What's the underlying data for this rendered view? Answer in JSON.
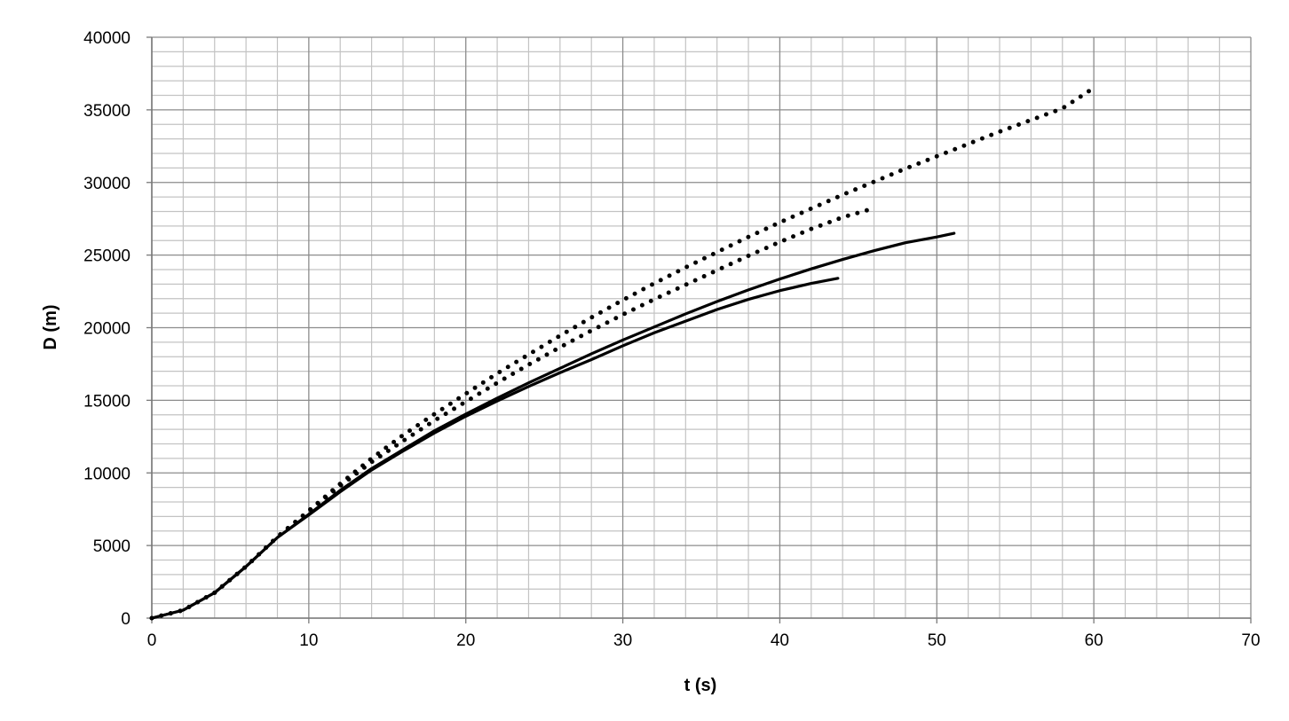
{
  "chart_data": {
    "type": "line",
    "title": "",
    "xlabel": "t (s)",
    "ylabel": "D (m)",
    "xlim": [
      0,
      70
    ],
    "ylim": [
      0,
      40000
    ],
    "x_major_ticks": [
      "0",
      "10",
      "20",
      "30",
      "40",
      "50",
      "60",
      "70"
    ],
    "y_major_ticks": [
      "0",
      "5000",
      "10000",
      "15000",
      "20000",
      "25000",
      "30000",
      "35000",
      "40000"
    ],
    "x_minor_step": 2,
    "y_minor_step": 1000,
    "grid": true,
    "legend": "none",
    "series": [
      {
        "style": "dotted",
        "color": "#000000",
        "points": [
          [
            0,
            0
          ],
          [
            2,
            550
          ],
          [
            4,
            1750
          ],
          [
            6,
            3550
          ],
          [
            8,
            5600
          ],
          [
            10,
            7400
          ],
          [
            12,
            9250
          ],
          [
            14,
            11000
          ],
          [
            16,
            12600
          ],
          [
            18,
            14050
          ],
          [
            20,
            15450
          ],
          [
            22,
            16850
          ],
          [
            24,
            18150
          ],
          [
            26,
            19450
          ],
          [
            28,
            20700
          ],
          [
            30,
            21900
          ],
          [
            32,
            23050
          ],
          [
            34,
            24150
          ],
          [
            36,
            25200
          ],
          [
            38,
            26250
          ],
          [
            40,
            27250
          ],
          [
            42,
            28200
          ],
          [
            44,
            29150
          ],
          [
            46,
            30050
          ],
          [
            48,
            30950
          ],
          [
            50,
            31800
          ],
          [
            52,
            32650
          ],
          [
            54,
            33500
          ],
          [
            56,
            34300
          ],
          [
            58,
            35100
          ],
          [
            59.7,
            36300
          ]
        ]
      },
      {
        "style": "dotted",
        "color": "#000000",
        "points": [
          [
            0,
            0
          ],
          [
            2,
            550
          ],
          [
            4,
            1750
          ],
          [
            6,
            3550
          ],
          [
            8,
            5600
          ],
          [
            10,
            7350
          ],
          [
            12,
            9100
          ],
          [
            14,
            10750
          ],
          [
            16,
            12200
          ],
          [
            18,
            13600
          ],
          [
            20,
            14900
          ],
          [
            22,
            16200
          ],
          [
            24,
            17450
          ],
          [
            26,
            18650
          ],
          [
            28,
            19800
          ],
          [
            30,
            20900
          ],
          [
            32,
            21950
          ],
          [
            34,
            22950
          ],
          [
            36,
            23950
          ],
          [
            38,
            24950
          ],
          [
            40,
            25900
          ],
          [
            42,
            26800
          ],
          [
            44,
            27600
          ],
          [
            45.6,
            28100
          ]
        ]
      },
      {
        "style": "solid",
        "color": "#000000",
        "points": [
          [
            0,
            0
          ],
          [
            2,
            550
          ],
          [
            4,
            1750
          ],
          [
            6,
            3550
          ],
          [
            8,
            5550
          ],
          [
            10,
            7150
          ],
          [
            12,
            8800
          ],
          [
            14,
            10300
          ],
          [
            16,
            11600
          ],
          [
            18,
            12900
          ],
          [
            20,
            14050
          ],
          [
            22,
            15150
          ],
          [
            24,
            16200
          ],
          [
            26,
            17200
          ],
          [
            28,
            18200
          ],
          [
            30,
            19150
          ],
          [
            32,
            20050
          ],
          [
            34,
            20950
          ],
          [
            36,
            21800
          ],
          [
            38,
            22600
          ],
          [
            40,
            23350
          ],
          [
            42,
            24050
          ],
          [
            44,
            24700
          ],
          [
            46,
            25300
          ],
          [
            48,
            25850
          ],
          [
            50,
            26250
          ],
          [
            51.1,
            26500
          ]
        ]
      },
      {
        "style": "solid",
        "color": "#000000",
        "points": [
          [
            0,
            0
          ],
          [
            2,
            550
          ],
          [
            4,
            1750
          ],
          [
            6,
            3550
          ],
          [
            8,
            5550
          ],
          [
            10,
            7100
          ],
          [
            12,
            8700
          ],
          [
            14,
            10200
          ],
          [
            16,
            11500
          ],
          [
            18,
            12750
          ],
          [
            20,
            13900
          ],
          [
            22,
            14950
          ],
          [
            24,
            15950
          ],
          [
            26,
            16900
          ],
          [
            28,
            17800
          ],
          [
            30,
            18750
          ],
          [
            32,
            19650
          ],
          [
            34,
            20450
          ],
          [
            36,
            21250
          ],
          [
            38,
            21950
          ],
          [
            40,
            22550
          ],
          [
            42,
            23050
          ],
          [
            43.7,
            23400
          ]
        ]
      }
    ]
  }
}
